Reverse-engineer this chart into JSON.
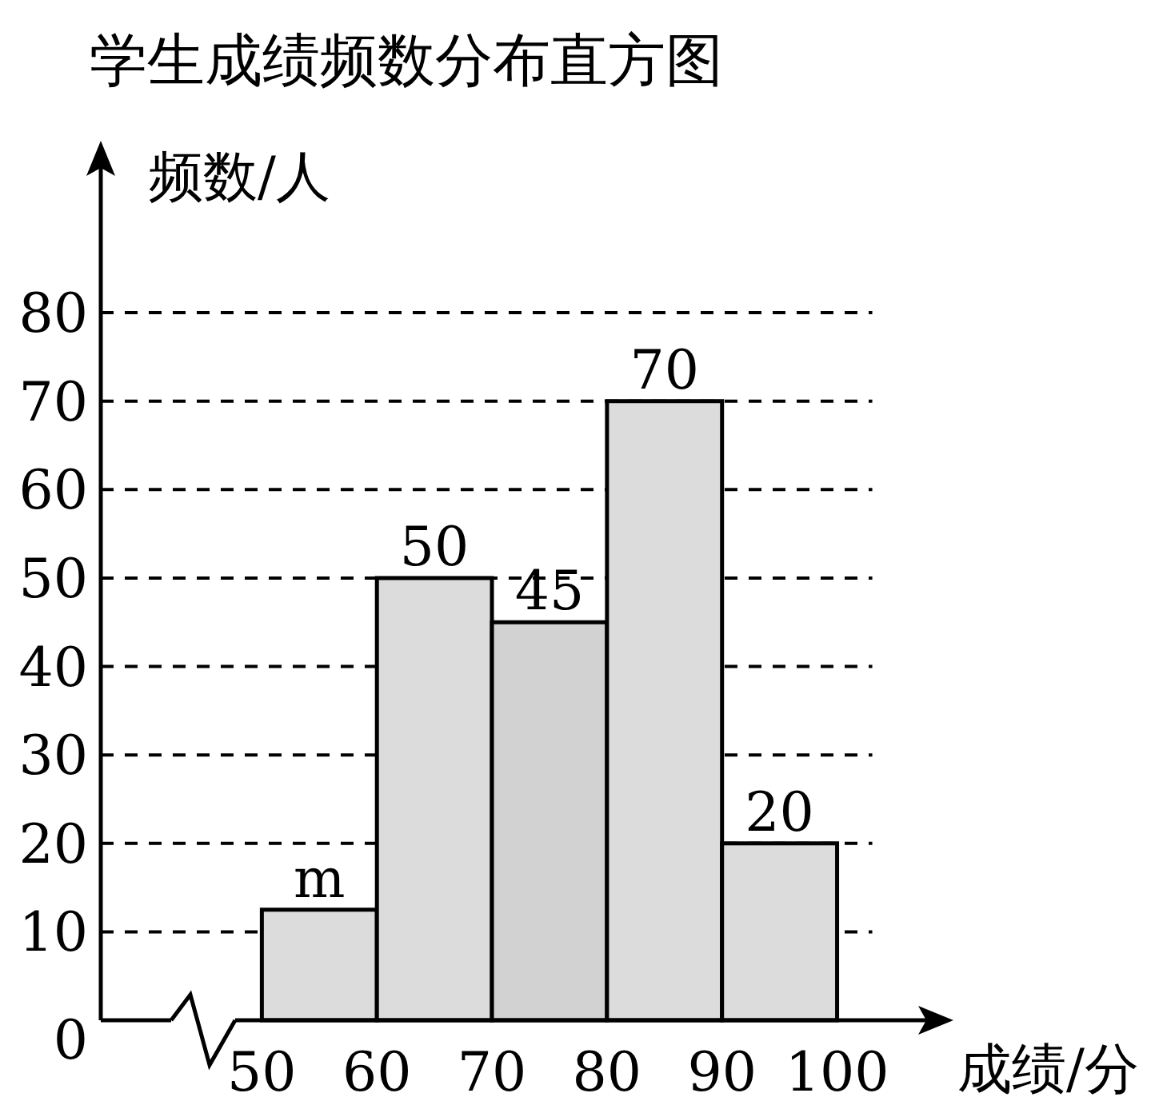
{
  "chart_data": {
    "type": "histogram",
    "title": "学生成绩频数分布直方图",
    "xlabel": "成绩/分",
    "ylabel": "频数/人",
    "bins": [
      50,
      60,
      70,
      80,
      90,
      100
    ],
    "values": [
      12.5,
      50,
      45,
      70,
      20
    ],
    "value_labels": [
      "m",
      "50",
      "45",
      "70",
      "20"
    ],
    "colors": [
      "#dcdcdc",
      "#dcdcdc",
      "#d2d2d2",
      "#dcdcdc",
      "#dcdcdc"
    ],
    "xlim": [
      36,
      109
    ],
    "ylim": [
      0,
      98
    ],
    "xticks": [
      50,
      60,
      70,
      80,
      90,
      100
    ],
    "yticks": [
      0,
      10,
      20,
      30,
      40,
      50,
      60,
      70,
      80
    ],
    "grid": "y",
    "line_style": "dashed"
  }
}
